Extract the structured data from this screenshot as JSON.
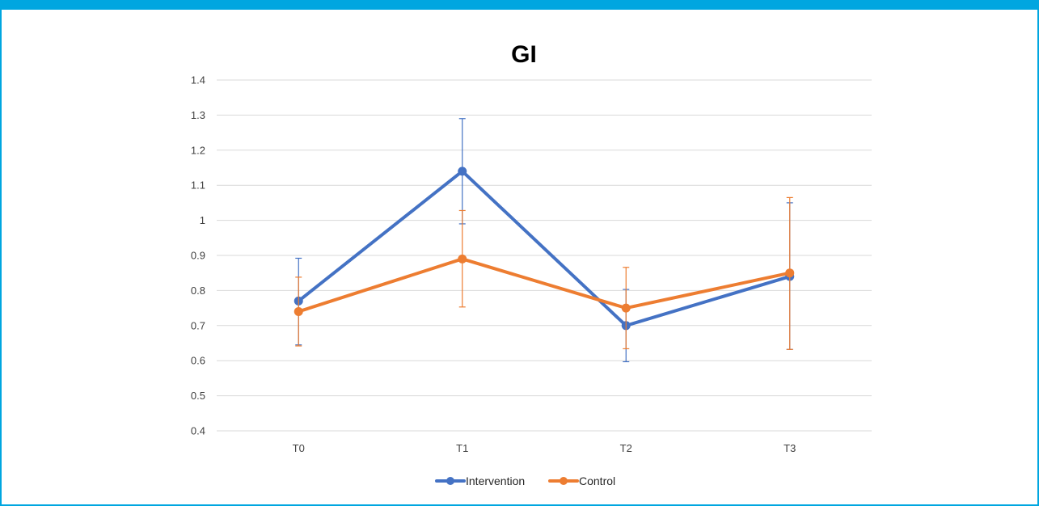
{
  "chart_data": {
    "type": "line",
    "title": "GI",
    "xlabel": "",
    "ylabel": "",
    "categories": [
      "T0",
      "T1",
      "T2",
      "T3"
    ],
    "ylim": [
      0.4,
      1.4
    ],
    "yticks": [
      "0.4",
      "0.5",
      "0.6",
      "0.7",
      "0.8",
      "0.9",
      "1",
      "1.1",
      "1.2",
      "1.3",
      "1.4"
    ],
    "grid": true,
    "legend_position": "bottom",
    "series": [
      {
        "name": "Intervention",
        "color": "#4472c4",
        "values": [
          0.77,
          1.14,
          0.7,
          0.84
        ],
        "error_low": [
          0.645,
          0.99,
          0.597,
          0.632
        ],
        "error_high": [
          0.892,
          1.29,
          0.803,
          1.05
        ]
      },
      {
        "name": "Control",
        "color": "#ed7d31",
        "values": [
          0.74,
          0.89,
          0.75,
          0.85
        ],
        "error_low": [
          0.642,
          0.753,
          0.634,
          0.632
        ],
        "error_high": [
          0.838,
          1.028,
          0.866,
          1.065
        ]
      }
    ]
  }
}
